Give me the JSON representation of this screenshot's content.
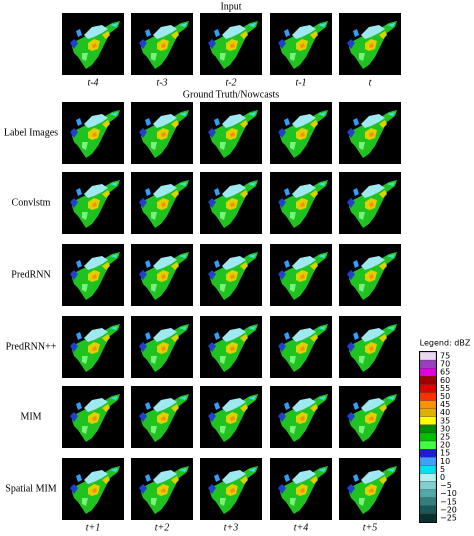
{
  "figure": {
    "input_title": "Input",
    "input_labels": [
      "t-4",
      "t-3",
      "t-2",
      "t-1",
      "t"
    ],
    "section_title": "Ground Truth/Nowcasts",
    "row_labels": [
      "Label Images",
      "Convlstm",
      "PredRNN",
      "PredRNN++",
      "MIM",
      "Spatial MIM"
    ],
    "output_labels": [
      "t+1",
      "t+2",
      "t+3",
      "t+4",
      "t+5"
    ],
    "legend": {
      "title": "Legend: dBZ",
      "items": [
        {
          "label": "75",
          "color": "#e8d8f0"
        },
        {
          "label": "70",
          "color": "#9a3fc0"
        },
        {
          "label": "65",
          "color": "#e000e0"
        },
        {
          "label": "60",
          "color": "#a00000"
        },
        {
          "label": "55",
          "color": "#e00000"
        },
        {
          "label": "50",
          "color": "#ff3000"
        },
        {
          "label": "45",
          "color": "#ff9000"
        },
        {
          "label": "40",
          "color": "#e0b000"
        },
        {
          "label": "35",
          "color": "#ffff00"
        },
        {
          "label": "30",
          "color": "#008c00"
        },
        {
          "label": "25",
          "color": "#00c000"
        },
        {
          "label": "20",
          "color": "#40ff40"
        },
        {
          "label": "15",
          "color": "#1e1ed0"
        },
        {
          "label": "10",
          "color": "#40a0ff"
        },
        {
          "label": "5",
          "color": "#00e0f0"
        },
        {
          "label": "0",
          "color": "#b0f0f0"
        },
        {
          "label": "−5",
          "color": "#80d0d0"
        },
        {
          "label": "−10",
          "color": "#50a8a8"
        },
        {
          "label": "−15",
          "color": "#308080"
        },
        {
          "label": "−20",
          "color": "#185858"
        },
        {
          "label": "−25",
          "color": "#083030"
        }
      ]
    }
  }
}
